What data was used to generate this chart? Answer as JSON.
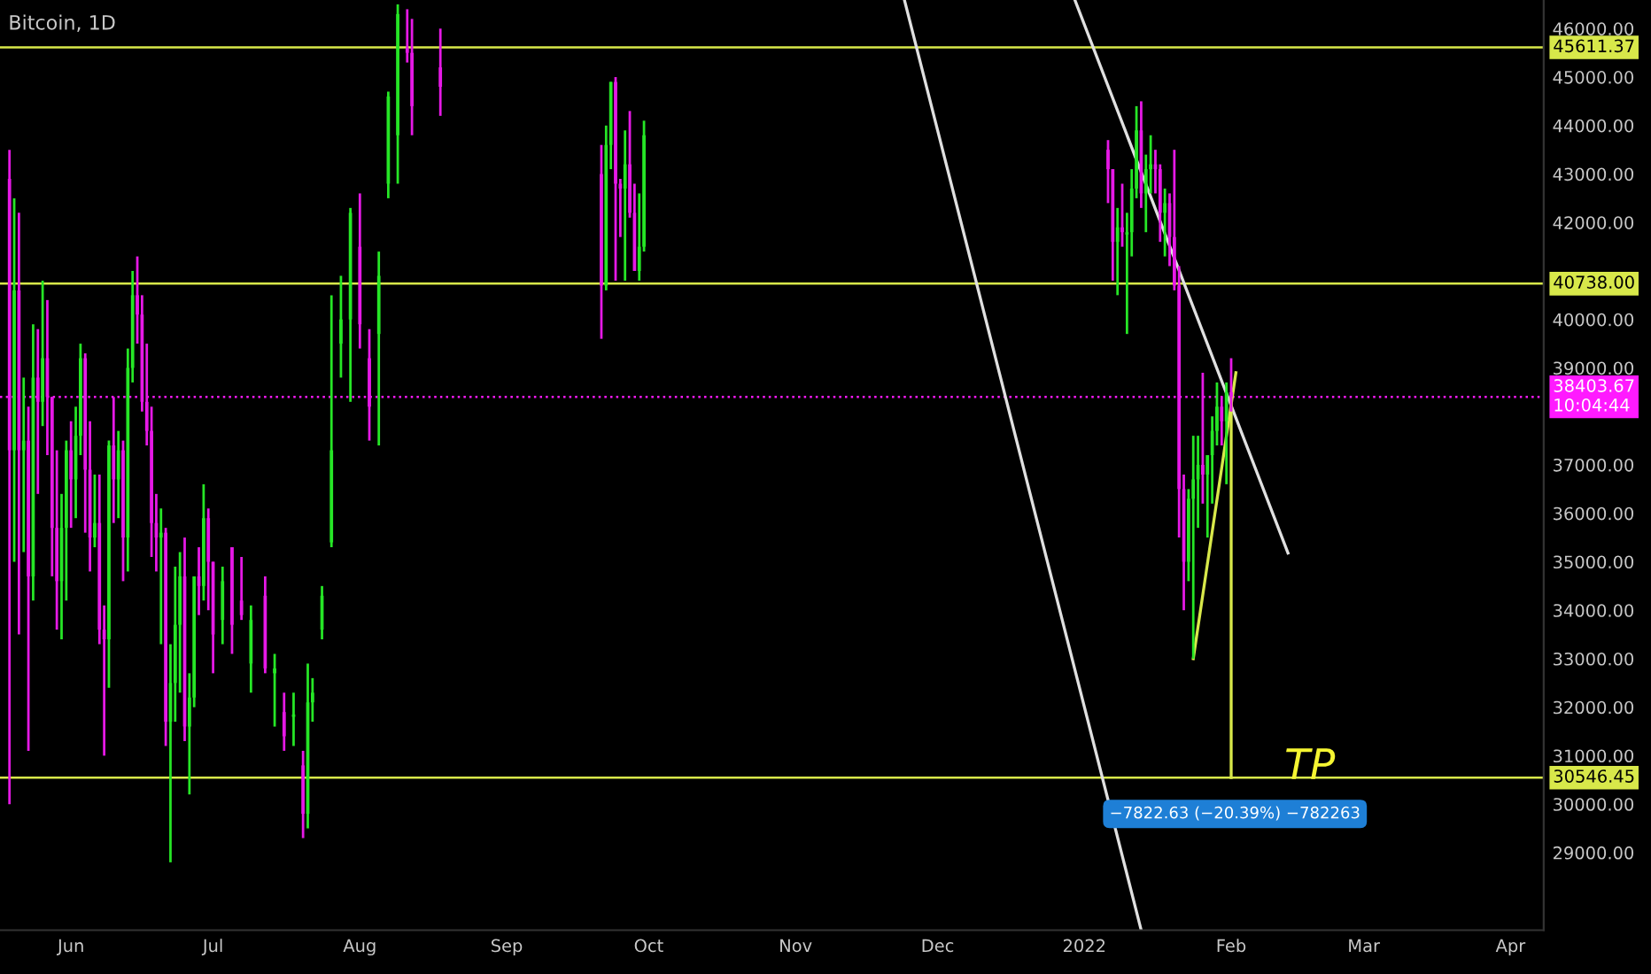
{
  "chart_data": {
    "type": "candlestick",
    "title": "Bitcoin, 1D",
    "x": [
      "2021-05-19",
      "2021-05-20",
      "2021-05-21",
      "2021-05-22",
      "2021-05-23",
      "2021-05-24",
      "2021-05-25",
      "2021-05-26",
      "2021-05-27",
      "2021-05-28",
      "2021-05-29",
      "2021-05-30",
      "2021-05-31",
      "2021-06-01",
      "2021-06-02",
      "2021-06-03",
      "2021-06-04",
      "2021-06-05",
      "2021-06-06",
      "2021-06-07",
      "2021-06-08",
      "2021-06-09",
      "2021-06-10",
      "2021-06-11",
      "2021-06-12",
      "2021-06-13",
      "2021-06-14",
      "2021-06-15",
      "2021-06-16",
      "2021-06-17",
      "2021-06-18",
      "2021-06-19",
      "2021-06-20",
      "2021-06-21",
      "2021-06-22",
      "2021-06-23",
      "2021-06-24",
      "2021-06-25",
      "2021-06-26",
      "2021-06-27",
      "2021-06-28",
      "2021-06-29",
      "2021-06-30",
      "2021-07-01",
      "2021-07-03",
      "2021-07-05",
      "2021-07-07",
      "2021-07-09",
      "2021-07-12",
      "2021-07-14",
      "2021-07-16",
      "2021-07-18",
      "2021-07-20",
      "2021-07-21",
      "2021-07-22",
      "2021-07-24",
      "2021-07-26",
      "2021-07-28",
      "2021-07-30",
      "2021-08-01",
      "2021-08-03",
      "2021-08-05",
      "2021-08-07",
      "2021-08-09",
      "2021-08-11",
      "2021-08-12",
      "2021-08-18",
      "2021-09-21",
      "2021-09-22",
      "2021-09-23",
      "2021-09-24",
      "2021-09-25",
      "2021-09-26",
      "2021-09-27",
      "2021-09-28",
      "2021-09-29",
      "2021-09-30",
      "2022-01-06",
      "2022-01-07",
      "2022-01-08",
      "2022-01-09",
      "2022-01-10",
      "2022-01-11",
      "2022-01-12",
      "2022-01-13",
      "2022-01-14",
      "2022-01-15",
      "2022-01-16",
      "2022-01-17",
      "2022-01-18",
      "2022-01-19",
      "2022-01-20",
      "2022-01-21",
      "2022-01-22",
      "2022-01-23",
      "2022-01-24",
      "2022-01-25",
      "2022-01-26",
      "2022-01-27",
      "2022-01-28",
      "2022-01-29",
      "2022-01-30",
      "2022-01-31",
      "2022-02-01"
    ],
    "ohlc": [
      [
        42900,
        43500,
        30000,
        37300
      ],
      [
        37300,
        42500,
        35000,
        40600
      ],
      [
        40600,
        42200,
        33500,
        37300
      ],
      [
        37300,
        38800,
        35200,
        37500
      ],
      [
        37500,
        38200,
        31100,
        34700
      ],
      [
        34700,
        39900,
        34200,
        38800
      ],
      [
        38800,
        39800,
        36400,
        38300
      ],
      [
        38300,
        40800,
        37800,
        39200
      ],
      [
        39200,
        40400,
        37200,
        38400
      ],
      [
        38400,
        38400,
        34700,
        35700
      ],
      [
        35700,
        37300,
        33600,
        34600
      ],
      [
        34600,
        36400,
        33400,
        35700
      ],
      [
        35700,
        37500,
        34200,
        37300
      ],
      [
        37300,
        37900,
        35700,
        36700
      ],
      [
        36700,
        38200,
        35900,
        37600
      ],
      [
        37600,
        39500,
        37200,
        39200
      ],
      [
        39200,
        39300,
        35600,
        36900
      ],
      [
        36900,
        37900,
        34800,
        35500
      ],
      [
        35500,
        36800,
        35300,
        35800
      ],
      [
        35800,
        36800,
        33300,
        33600
      ],
      [
        33600,
        34100,
        31000,
        33400
      ],
      [
        33400,
        37500,
        32400,
        37400
      ],
      [
        37400,
        38400,
        35800,
        36700
      ],
      [
        36700,
        37700,
        35900,
        37300
      ],
      [
        37300,
        37500,
        34600,
        35500
      ],
      [
        35500,
        39400,
        34800,
        39000
      ],
      [
        39000,
        41000,
        38700,
        40500
      ],
      [
        40500,
        41300,
        39500,
        40100
      ],
      [
        40100,
        40500,
        38100,
        38300
      ],
      [
        38300,
        39500,
        37400,
        37700
      ],
      [
        37700,
        38200,
        35100,
        35800
      ],
      [
        35800,
        36400,
        34800,
        35500
      ],
      [
        35500,
        36100,
        33300,
        35600
      ],
      [
        35600,
        35700,
        31200,
        31700
      ],
      [
        31700,
        33300,
        28800,
        32500
      ],
      [
        32500,
        34900,
        31700,
        33700
      ],
      [
        33700,
        35200,
        32300,
        34700
      ],
      [
        34700,
        35500,
        31300,
        31600
      ],
      [
        31600,
        32700,
        30200,
        32200
      ],
      [
        32200,
        34700,
        32000,
        34700
      ],
      [
        34700,
        35300,
        33900,
        34500
      ],
      [
        34500,
        36600,
        34200,
        35900
      ],
      [
        35900,
        36100,
        34000,
        35000
      ],
      [
        35000,
        35000,
        32700,
        33500
      ],
      [
        33800,
        34900,
        33300,
        34600
      ],
      [
        35300,
        35300,
        33100,
        33700
      ],
      [
        34200,
        35100,
        33800,
        33900
      ],
      [
        32900,
        34100,
        32300,
        33800
      ],
      [
        34300,
        34700,
        32700,
        32800
      ],
      [
        32700,
        33100,
        31600,
        32800
      ],
      [
        31900,
        32300,
        31100,
        31400
      ],
      [
        31800,
        32300,
        31200,
        31850
      ],
      [
        30800,
        31100,
        29300,
        29800
      ],
      [
        29800,
        32900,
        29500,
        32100
      ],
      [
        32100,
        32600,
        31700,
        32300
      ],
      [
        33600,
        34500,
        33400,
        34300
      ],
      [
        35400,
        40500,
        35300,
        37300
      ],
      [
        39500,
        40900,
        38800,
        40000
      ],
      [
        40000,
        42300,
        38300,
        42200
      ],
      [
        41500,
        42600,
        39400,
        39900
      ],
      [
        39200,
        39800,
        37500,
        38200
      ],
      [
        39700,
        41400,
        37400,
        40900
      ],
      [
        42800,
        44700,
        42500,
        44600
      ],
      [
        43800,
        46500,
        42800,
        46300
      ],
      [
        45600,
        46400,
        45300,
        45500
      ],
      [
        45500,
        46200,
        43800,
        44400
      ],
      [
        45200,
        46000,
        44200,
        44800
      ],
      [
        43000,
        43600,
        39600,
        40700
      ],
      [
        40700,
        44000,
        40600,
        43600
      ],
      [
        43600,
        44900,
        43100,
        44900
      ],
      [
        44900,
        45000,
        40800,
        42800
      ],
      [
        42800,
        42900,
        41700,
        42700
      ],
      [
        42700,
        43900,
        40800,
        43200
      ],
      [
        43200,
        44300,
        42100,
        42200
      ],
      [
        42200,
        42800,
        41000,
        41000
      ],
      [
        41000,
        42600,
        40800,
        41500
      ],
      [
        41500,
        44100,
        41400,
        43800
      ],
      [
        43500,
        43700,
        42400,
        43100
      ],
      [
        43100,
        43100,
        40800,
        41600
      ],
      [
        41600,
        42300,
        40500,
        41900
      ],
      [
        41900,
        42800,
        41500,
        41800
      ],
      [
        41800,
        42200,
        39700,
        41750
      ],
      [
        41800,
        43100,
        41300,
        42700
      ],
      [
        42700,
        44400,
        42500,
        43900
      ],
      [
        43900,
        44500,
        42300,
        42600
      ],
      [
        42600,
        43400,
        41800,
        43100
      ],
      [
        43100,
        43800,
        42600,
        43200
      ],
      [
        43200,
        43500,
        42600,
        43100
      ],
      [
        43100,
        43200,
        41600,
        42200
      ],
      [
        42200,
        42700,
        41300,
        42400
      ],
      [
        42400,
        42600,
        41100,
        41700
      ],
      [
        41700,
        43500,
        40600,
        40700
      ],
      [
        40700,
        41100,
        35500,
        36500
      ],
      [
        36500,
        36800,
        34000,
        35000
      ],
      [
        35000,
        36500,
        34600,
        36300
      ],
      [
        36300,
        37600,
        33000,
        36700
      ],
      [
        36700,
        37600,
        35700,
        37000
      ],
      [
        37000,
        38900,
        36200,
        36800
      ],
      [
        36800,
        37200,
        35500,
        37200
      ],
      [
        37200,
        38000,
        36200,
        37700
      ],
      [
        37700,
        38700,
        37400,
        38200
      ],
      [
        38200,
        38400,
        37400,
        37900
      ],
      [
        37900,
        38700,
        36600,
        38500
      ],
      [
        38500,
        39200,
        38100,
        38403.67
      ]
    ],
    "colors": [
      "#e619e6",
      "#26e626",
      "#e619e6",
      "#26e626",
      "#e619e6",
      "#26e626",
      "#e619e6",
      "#26e626",
      "#e619e6",
      "#e619e6",
      "#e619e6",
      "#26e626",
      "#26e626",
      "#e619e6",
      "#26e626",
      "#26e626",
      "#e619e6",
      "#e619e6",
      "#26e626",
      "#e619e6",
      "#e619e6",
      "#26e626",
      "#e619e6",
      "#26e626",
      "#e619e6",
      "#26e626",
      "#26e626",
      "#e619e6",
      "#e619e6",
      "#e619e6",
      "#e619e6",
      "#e619e6",
      "#26e626",
      "#e619e6",
      "#26e626",
      "#26e626",
      "#26e626",
      "#e619e6",
      "#26e626",
      "#26e626",
      "#e619e6",
      "#26e626",
      "#e619e6",
      "#e619e6",
      "#26e626",
      "#e619e6",
      "#e619e6",
      "#26e626",
      "#e619e6",
      "#26e626",
      "#e619e6",
      "#26e626",
      "#e619e6",
      "#26e626",
      "#26e626",
      "#26e626",
      "#26e626",
      "#26e626",
      "#26e626",
      "#e619e6",
      "#e619e6",
      "#26e626",
      "#26e626",
      "#26e626",
      "#e619e6",
      "#e619e6",
      "#e619e6",
      "#e619e6",
      "#26e626",
      "#26e626",
      "#e619e6",
      "#e619e6",
      "#26e626",
      "#e619e6",
      "#e619e6",
      "#26e626",
      "#26e626",
      "#e619e6",
      "#e619e6",
      "#26e626",
      "#e619e6",
      "#26e626",
      "#26e626",
      "#26e626",
      "#e619e6",
      "#26e626",
      "#26e626",
      "#e619e6",
      "#e619e6",
      "#26e626",
      "#e619e6",
      "#e619e6",
      "#e619e6",
      "#e619e6",
      "#26e626",
      "#26e626",
      "#26e626",
      "#e619e6",
      "#26e626",
      "#26e626",
      "#26e626",
      "#e619e6",
      "#26e626",
      "#e619e6"
    ],
    "series": [
      {
        "type": "line",
        "color": "#e0e0e0",
        "x": [
          "2021-11-24",
          "2022-01-13"
        ],
        "values": [
          46590,
          27400
        ]
      },
      {
        "type": "line",
        "color": "#e0e0e0",
        "x": [
          "2021-12-30",
          "2022-02-13"
        ],
        "values": [
          46590,
          35180
        ]
      },
      {
        "type": "line",
        "color": "#d8e84a",
        "x": [
          "2022-01-24",
          "2022-02-02"
        ],
        "values": [
          33000,
          38900
        ]
      },
      {
        "type": "line",
        "color": "#d8e84a",
        "x": [
          "2022-02-01",
          "2022-02-01"
        ],
        "values": [
          38400,
          30550
        ]
      }
    ],
    "ref_lines": [
      {
        "axis": "y",
        "value": 45611.37,
        "label": "45611.37",
        "color": "#d8e84a"
      },
      {
        "axis": "y",
        "value": 40738.0,
        "label": "40738.00",
        "color": "#d8e84a"
      },
      {
        "axis": "y",
        "value": 30546.45,
        "label": "30546.45",
        "color": "#d8e84a"
      },
      {
        "axis": "y",
        "value": 38403.67,
        "label": "38403.67\n10:04:44",
        "color": "#ff1aff",
        "line_style": "dotted"
      }
    ],
    "annotations": [
      "TP",
      "−7822.63 (−20.39%) −782263"
    ],
    "xlim": [
      "2021-05-17",
      "2022-04-08"
    ],
    "xticks": [
      {
        "value": "2021-06-01",
        "label": "Jun"
      },
      {
        "value": "2021-07-01",
        "label": "Jul"
      },
      {
        "value": "2021-08-01",
        "label": "Aug"
      },
      {
        "value": "2021-09-01",
        "label": "Sep"
      },
      {
        "value": "2021-10-01",
        "label": "Oct"
      },
      {
        "value": "2021-11-01",
        "label": "Nov"
      },
      {
        "value": "2021-12-01",
        "label": "Dec"
      },
      {
        "value": "2022-01-01",
        "label": "2022"
      },
      {
        "value": "2022-02-01",
        "label": "Feb"
      },
      {
        "value": "2022-03-01",
        "label": "Mar"
      },
      {
        "value": "2022-04-01",
        "label": "Apr"
      }
    ],
    "ylim": [
      27400,
      46590
    ],
    "yticks": [
      {
        "value": 29000,
        "label": "29000.00"
      },
      {
        "value": 30000,
        "label": "30000.00"
      },
      {
        "value": 31000,
        "label": "31000.00"
      },
      {
        "value": 32000,
        "label": "32000.00"
      },
      {
        "value": 33000,
        "label": "33000.00"
      },
      {
        "value": 34000,
        "label": "34000.00"
      },
      {
        "value": 35000,
        "label": "35000.00"
      },
      {
        "value": 36000,
        "label": "36000.00"
      },
      {
        "value": 37000,
        "label": "37000.00"
      },
      {
        "value": 39000,
        "label": "39000.00"
      },
      {
        "value": 40000,
        "label": "40000.00"
      },
      {
        "value": 42000,
        "label": "42000.00"
      },
      {
        "value": 43000,
        "label": "43000.00"
      },
      {
        "value": 44000,
        "label": "44000.00"
      },
      {
        "value": 45000,
        "label": "45000.00"
      },
      {
        "value": 46000,
        "label": "46000.00"
      }
    ],
    "grid": false,
    "legend": false
  }
}
